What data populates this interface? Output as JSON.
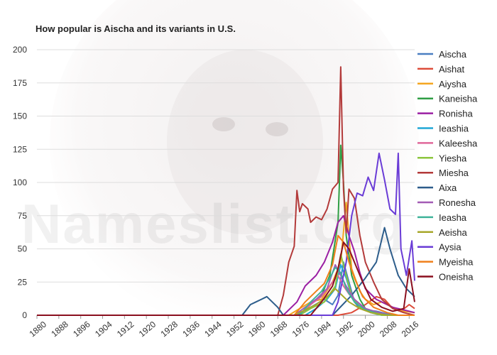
{
  "watermark": "Nameslist.org",
  "chart_data": {
    "type": "line",
    "title": "How popular is Aischa and its variants in U.S.",
    "xlabel": "",
    "ylabel": "",
    "xlim": [
      1880,
      2018
    ],
    "ylim": [
      0,
      200
    ],
    "x_ticks": [
      1880,
      1888,
      1896,
      1904,
      1912,
      1920,
      1928,
      1936,
      1944,
      1952,
      1960,
      1968,
      1976,
      1984,
      1992,
      2000,
      2008,
      2016
    ],
    "y_ticks": [
      0,
      25,
      50,
      75,
      100,
      125,
      150,
      175,
      200
    ],
    "grid": "horizontal",
    "legend_position": "right",
    "series": [
      {
        "name": "Aischa",
        "color": "#4a7fc1",
        "points": [
          [
            1880,
            0
          ],
          [
            1958,
            0
          ],
          [
            1975,
            0
          ],
          [
            1980,
            6
          ],
          [
            1985,
            12
          ],
          [
            1988,
            8
          ],
          [
            1990,
            15
          ],
          [
            1992,
            40
          ],
          [
            1994,
            25
          ],
          [
            1996,
            10
          ],
          [
            1998,
            5
          ],
          [
            2000,
            4
          ],
          [
            2004,
            3
          ],
          [
            2010,
            0
          ],
          [
            2018,
            0
          ]
        ]
      },
      {
        "name": "Aishat",
        "color": "#dd4b39",
        "points": [
          [
            1880,
            0
          ],
          [
            1990,
            0
          ],
          [
            1995,
            2
          ],
          [
            2000,
            8
          ],
          [
            2004,
            14
          ],
          [
            2007,
            12
          ],
          [
            2010,
            5
          ],
          [
            2013,
            3
          ],
          [
            2016,
            8
          ],
          [
            2018,
            5
          ]
        ]
      },
      {
        "name": "Aiysha",
        "color": "#f4a620",
        "points": [
          [
            1880,
            0
          ],
          [
            1972,
            0
          ],
          [
            1976,
            5
          ],
          [
            1980,
            10
          ],
          [
            1984,
            12
          ],
          [
            1988,
            25
          ],
          [
            1991,
            40
          ],
          [
            1993,
            85
          ],
          [
            1995,
            35
          ],
          [
            1998,
            18
          ],
          [
            2000,
            12
          ],
          [
            2003,
            8
          ],
          [
            2006,
            10
          ],
          [
            2010,
            6
          ],
          [
            2014,
            3
          ],
          [
            2018,
            2
          ]
        ]
      },
      {
        "name": "Kaneisha",
        "color": "#2f9e44",
        "points": [
          [
            1880,
            0
          ],
          [
            1976,
            0
          ],
          [
            1980,
            8
          ],
          [
            1984,
            15
          ],
          [
            1987,
            30
          ],
          [
            1990,
            70
          ],
          [
            1991,
            128
          ],
          [
            1992,
            100
          ],
          [
            1993,
            60
          ],
          [
            1995,
            30
          ],
          [
            1998,
            12
          ],
          [
            2000,
            5
          ],
          [
            2004,
            2
          ],
          [
            2008,
            0
          ],
          [
            2018,
            0
          ]
        ]
      },
      {
        "name": "Ronisha",
        "color": "#9b1fa3",
        "points": [
          [
            1880,
            0
          ],
          [
            1970,
            0
          ],
          [
            1975,
            10
          ],
          [
            1978,
            22
          ],
          [
            1982,
            30
          ],
          [
            1985,
            40
          ],
          [
            1988,
            55
          ],
          [
            1990,
            70
          ],
          [
            1992,
            75
          ],
          [
            1994,
            60
          ],
          [
            1996,
            48
          ],
          [
            1998,
            32
          ],
          [
            2000,
            20
          ],
          [
            2004,
            12
          ],
          [
            2010,
            6
          ],
          [
            2016,
            3
          ],
          [
            2018,
            2
          ]
        ]
      },
      {
        "name": "Ieashia",
        "color": "#20a7d6",
        "points": [
          [
            1880,
            0
          ],
          [
            1978,
            0
          ],
          [
            1982,
            5
          ],
          [
            1986,
            12
          ],
          [
            1989,
            20
          ],
          [
            1991,
            38
          ],
          [
            1993,
            28
          ],
          [
            1995,
            14
          ],
          [
            1998,
            6
          ],
          [
            2002,
            2
          ],
          [
            2006,
            0
          ],
          [
            2018,
            0
          ]
        ]
      },
      {
        "name": "Kaleesha",
        "color": "#e0679a",
        "points": [
          [
            1880,
            0
          ],
          [
            1976,
            0
          ],
          [
            1980,
            8
          ],
          [
            1984,
            14
          ],
          [
            1988,
            25
          ],
          [
            1990,
            30
          ],
          [
            1992,
            22
          ],
          [
            1994,
            16
          ],
          [
            1997,
            10
          ],
          [
            2000,
            5
          ],
          [
            2004,
            2
          ],
          [
            2008,
            0
          ],
          [
            2018,
            0
          ]
        ]
      },
      {
        "name": "Yiesha",
        "color": "#8cc63e",
        "points": [
          [
            1880,
            0
          ],
          [
            1976,
            0
          ],
          [
            1980,
            5
          ],
          [
            1985,
            10
          ],
          [
            1989,
            22
          ],
          [
            1991,
            46
          ],
          [
            1993,
            30
          ],
          [
            1995,
            15
          ],
          [
            1998,
            6
          ],
          [
            2002,
            2
          ],
          [
            2006,
            0
          ],
          [
            2018,
            0
          ]
        ]
      },
      {
        "name": "Miesha",
        "color": "#b33a3a",
        "points": [
          [
            1880,
            0
          ],
          [
            1968,
            0
          ],
          [
            1970,
            15
          ],
          [
            1972,
            40
          ],
          [
            1974,
            52
          ],
          [
            1975,
            94
          ],
          [
            1976,
            78
          ],
          [
            1977,
            84
          ],
          [
            1979,
            80
          ],
          [
            1980,
            70
          ],
          [
            1982,
            74
          ],
          [
            1984,
            72
          ],
          [
            1986,
            80
          ],
          [
            1988,
            95
          ],
          [
            1990,
            100
          ],
          [
            1991,
            187
          ],
          [
            1992,
            95
          ],
          [
            1993,
            62
          ],
          [
            1994,
            95
          ],
          [
            1996,
            88
          ],
          [
            1998,
            60
          ],
          [
            2000,
            40
          ],
          [
            2003,
            25
          ],
          [
            2006,
            12
          ],
          [
            2010,
            5
          ],
          [
            2014,
            2
          ],
          [
            2018,
            0
          ]
        ]
      },
      {
        "name": "Aixa",
        "color": "#2d5d8b",
        "points": [
          [
            1880,
            0
          ],
          [
            1955,
            0
          ],
          [
            1958,
            8
          ],
          [
            1960,
            10
          ],
          [
            1962,
            12
          ],
          [
            1964,
            14
          ],
          [
            1966,
            10
          ],
          [
            1968,
            6
          ],
          [
            1970,
            0
          ],
          [
            1988,
            0
          ],
          [
            1995,
            15
          ],
          [
            2000,
            28
          ],
          [
            2004,
            40
          ],
          [
            2007,
            66
          ],
          [
            2009,
            50
          ],
          [
            2012,
            30
          ],
          [
            2015,
            20
          ],
          [
            2018,
            14
          ]
        ]
      },
      {
        "name": "Ronesha",
        "color": "#a35bb5",
        "points": [
          [
            1880,
            0
          ],
          [
            1974,
            0
          ],
          [
            1978,
            6
          ],
          [
            1982,
            12
          ],
          [
            1986,
            20
          ],
          [
            1989,
            38
          ],
          [
            1991,
            30
          ],
          [
            1993,
            22
          ],
          [
            1996,
            12
          ],
          [
            2000,
            5
          ],
          [
            2005,
            2
          ],
          [
            2010,
            0
          ],
          [
            2018,
            0
          ]
        ]
      },
      {
        "name": "Ieasha",
        "color": "#3fb39a",
        "points": [
          [
            1880,
            0
          ],
          [
            1976,
            0
          ],
          [
            1980,
            10
          ],
          [
            1984,
            18
          ],
          [
            1987,
            28
          ],
          [
            1989,
            36
          ],
          [
            1991,
            32
          ],
          [
            1993,
            20
          ],
          [
            1996,
            10
          ],
          [
            2000,
            4
          ],
          [
            2005,
            1
          ],
          [
            2010,
            0
          ],
          [
            2018,
            0
          ]
        ]
      },
      {
        "name": "Aeisha",
        "color": "#a7a72a",
        "points": [
          [
            1880,
            0
          ],
          [
            1974,
            0
          ],
          [
            1978,
            4
          ],
          [
            1982,
            8
          ],
          [
            1986,
            14
          ],
          [
            1989,
            20
          ],
          [
            1991,
            16
          ],
          [
            1994,
            10
          ],
          [
            1998,
            5
          ],
          [
            2002,
            2
          ],
          [
            2008,
            0
          ],
          [
            2018,
            0
          ]
        ]
      },
      {
        "name": "Aysia",
        "color": "#6a3cd6",
        "points": [
          [
            1880,
            0
          ],
          [
            1988,
            0
          ],
          [
            1990,
            10
          ],
          [
            1993,
            40
          ],
          [
            1995,
            75
          ],
          [
            1997,
            92
          ],
          [
            1999,
            90
          ],
          [
            2001,
            104
          ],
          [
            2003,
            94
          ],
          [
            2005,
            122
          ],
          [
            2007,
            102
          ],
          [
            2009,
            80
          ],
          [
            2011,
            76
          ],
          [
            2012,
            122
          ],
          [
            2013,
            50
          ],
          [
            2015,
            30
          ],
          [
            2017,
            56
          ],
          [
            2018,
            26
          ]
        ]
      },
      {
        "name": "Myeisha",
        "color": "#ef7f1a",
        "points": [
          [
            1880,
            0
          ],
          [
            1974,
            0
          ],
          [
            1978,
            10
          ],
          [
            1982,
            18
          ],
          [
            1985,
            24
          ],
          [
            1988,
            38
          ],
          [
            1990,
            60
          ],
          [
            1992,
            55
          ],
          [
            1994,
            40
          ],
          [
            1996,
            28
          ],
          [
            1999,
            14
          ],
          [
            2003,
            6
          ],
          [
            2008,
            2
          ],
          [
            2012,
            0
          ],
          [
            2018,
            0
          ]
        ]
      },
      {
        "name": "Oneisha",
        "color": "#8b0f1f",
        "points": [
          [
            1880,
            0
          ],
          [
            1980,
            0
          ],
          [
            1984,
            10
          ],
          [
            1988,
            22
          ],
          [
            1990,
            35
          ],
          [
            1992,
            55
          ],
          [
            1994,
            50
          ],
          [
            1996,
            40
          ],
          [
            1999,
            25
          ],
          [
            2002,
            12
          ],
          [
            2006,
            6
          ],
          [
            2010,
            3
          ],
          [
            2014,
            5
          ],
          [
            2016,
            35
          ],
          [
            2018,
            10
          ]
        ]
      }
    ]
  }
}
